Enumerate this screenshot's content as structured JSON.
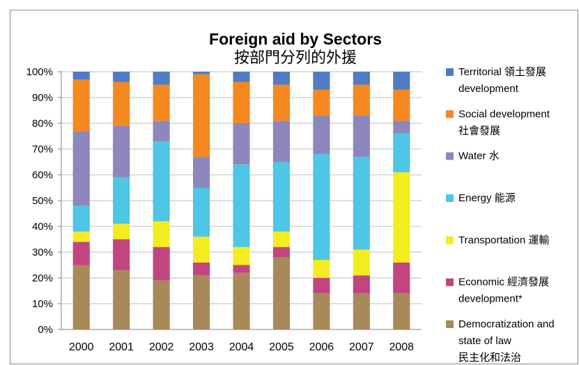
{
  "chart_data": {
    "type": "stacked_bar",
    "title": "Foreign aid by Sectors",
    "subtitle": "按部門分列的外援",
    "categories": [
      "2000",
      "2001",
      "2002",
      "2003",
      "2004",
      "2005",
      "2006",
      "2007",
      "2008"
    ],
    "series": [
      {
        "name": "Democratization and\nstate of law\n民主化和法治",
        "color": "#a8895a",
        "values": [
          25,
          23,
          19,
          21,
          22,
          28,
          14,
          14,
          14
        ]
      },
      {
        "name": "Economic 經濟發展\ndevelopment*",
        "color": "#c2457f",
        "values": [
          9,
          12,
          13,
          5,
          3,
          4,
          6,
          7,
          12
        ]
      },
      {
        "name": "Transportation 運輸",
        "color": "#f4ec1f",
        "values": [
          4,
          6,
          10,
          10,
          7,
          6,
          7,
          10,
          35
        ]
      },
      {
        "name": "Energy 能源",
        "color": "#4ec6e6",
        "values": [
          10,
          18,
          31,
          19,
          32,
          27,
          41,
          36,
          15
        ]
      },
      {
        "name": "Water 水",
        "color": "#8d87bd",
        "values": [
          29,
          20,
          8,
          12,
          16,
          16,
          15,
          16,
          5
        ]
      },
      {
        "name": "Social development\n社會發展",
        "color": "#f5881f",
        "values": [
          20,
          17,
          14,
          32,
          16,
          14,
          10,
          12,
          12
        ]
      },
      {
        "name": "Territorial 領土發展\ndevelopment",
        "color": "#4f7cc3",
        "values": [
          3,
          4,
          5,
          1,
          4,
          5,
          7,
          5,
          7
        ]
      }
    ],
    "ylim": [
      0,
      100
    ],
    "yticks": [
      {
        "value": 0,
        "label": "0%"
      },
      {
        "value": 10,
        "label": "10%"
      },
      {
        "value": 20,
        "label": "20%"
      },
      {
        "value": 30,
        "label": "30%"
      },
      {
        "value": 40,
        "label": "40%"
      },
      {
        "value": 50,
        "label": "50%"
      },
      {
        "value": 60,
        "label": "60%"
      },
      {
        "value": 70,
        "label": "70%"
      },
      {
        "value": 80,
        "label": "80%"
      },
      {
        "value": 90,
        "label": "90%"
      },
      {
        "value": 100,
        "label": "100%"
      }
    ],
    "grid": true,
    "legend": "right"
  }
}
